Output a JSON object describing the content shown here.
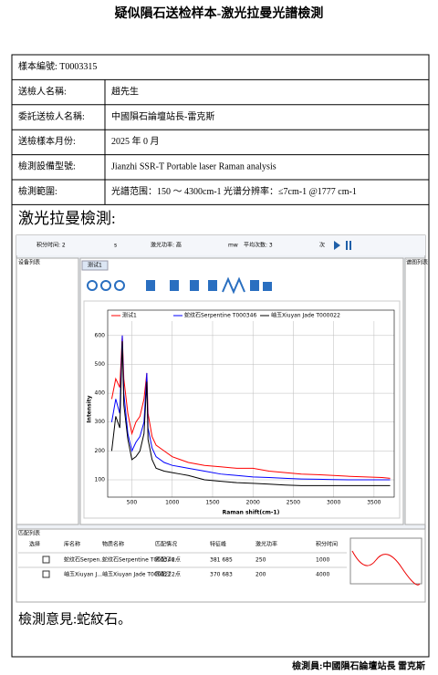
{
  "header": {
    "title": "疑似隕石送检样本-激光拉曼光譜檢測"
  },
  "table": {
    "rows": [
      [
        "樣本編號: T0003315"
      ],
      [
        "送檢人名稱:",
        "趙先生"
      ],
      [
        "委託送檢人名稱:",
        "中國隕石論壇站長-雷克斯"
      ],
      [
        "送檢樣本月份:",
        "2025 年 0 月"
      ],
      [
        "檢測設備型號:",
        "Jianzhi SSR-T Portable laser Raman analysis"
      ],
      [
        "檢測範圍:",
        "光譜范围：150 ～ 4300cm-1 光谱分辨率：≤7cm-1 @1777 cm-1"
      ]
    ]
  },
  "section_heading": "激光拉曼檢測:",
  "software": {
    "toolbar": [
      "积分时间: 2",
      "s",
      "激光功率: 高",
      "mw",
      "平均次数: 3",
      "次"
    ],
    "device_panel": "设备列表",
    "tab": "测试1",
    "spectrum_panel": "谱图列表",
    "match_panel": "匹配列表",
    "match_headers": [
      "选择",
      "库名称",
      "物质名称",
      "匹配情况",
      "特征峰",
      "激光功率",
      "积分时间"
    ],
    "match_rows": [
      [
        "蛇纹石Serpen...",
        "蛇纹石Serpentine T000346",
        "匹配了2点",
        "381 685",
        "250",
        "1000"
      ],
      [
        "岫玉Xiuyan J...",
        "岫玉Xiuyan Jade T000022",
        "匹配了2点",
        "370 683",
        "200",
        "4000"
      ]
    ]
  },
  "chart_data": {
    "type": "line",
    "x_label": "Raman shift(cm-1)",
    "y_label": "Intensity",
    "xlim": [
      200,
      3750
    ],
    "xticks": [
      500,
      1000,
      1500,
      2000,
      2500,
      3000,
      3500
    ],
    "ylim": [
      40,
      650
    ],
    "yticks": [
      100,
      200,
      300,
      400,
      500,
      600
    ],
    "grid": true,
    "x": [
      250,
      300,
      350,
      381,
      400,
      450,
      500,
      550,
      600,
      650,
      685,
      700,
      750,
      800,
      900,
      1000,
      1100,
      1200,
      1400,
      1600,
      1800,
      2000,
      2200,
      2400,
      2600,
      2800,
      3000,
      3200,
      3400,
      3600,
      3700
    ],
    "series": [
      {
        "name": "测试1",
        "color": "#ff0000",
        "values": [
          380,
          450,
          420,
          600,
          450,
          330,
          260,
          300,
          320,
          380,
          470,
          330,
          250,
          220,
          200,
          180,
          170,
          160,
          150,
          145,
          140,
          140,
          130,
          125,
          120,
          118,
          115,
          112,
          110,
          108,
          105
        ]
      },
      {
        "name": "蛇纹石Serpentine T000346",
        "color": "#0000ff",
        "values": [
          300,
          380,
          330,
          600,
          400,
          260,
          200,
          230,
          250,
          300,
          470,
          280,
          210,
          180,
          160,
          150,
          145,
          140,
          130,
          120,
          115,
          110,
          108,
          105,
          103,
          102,
          101,
          100,
          100,
          100,
          100
        ]
      },
      {
        "name": "岫玉Xiuyan Jade T000022",
        "color": "#000000",
        "values": [
          200,
          320,
          280,
          580,
          360,
          240,
          170,
          180,
          200,
          260,
          440,
          240,
          170,
          140,
          130,
          125,
          120,
          115,
          100,
          95,
          90,
          88,
          85,
          82,
          80,
          80,
          80,
          80,
          80,
          80,
          80
        ]
      }
    ]
  },
  "opinion": "檢測意見:蛇紋石。",
  "footer": "檢測員:中國隕石論壇站長 雷克斯"
}
